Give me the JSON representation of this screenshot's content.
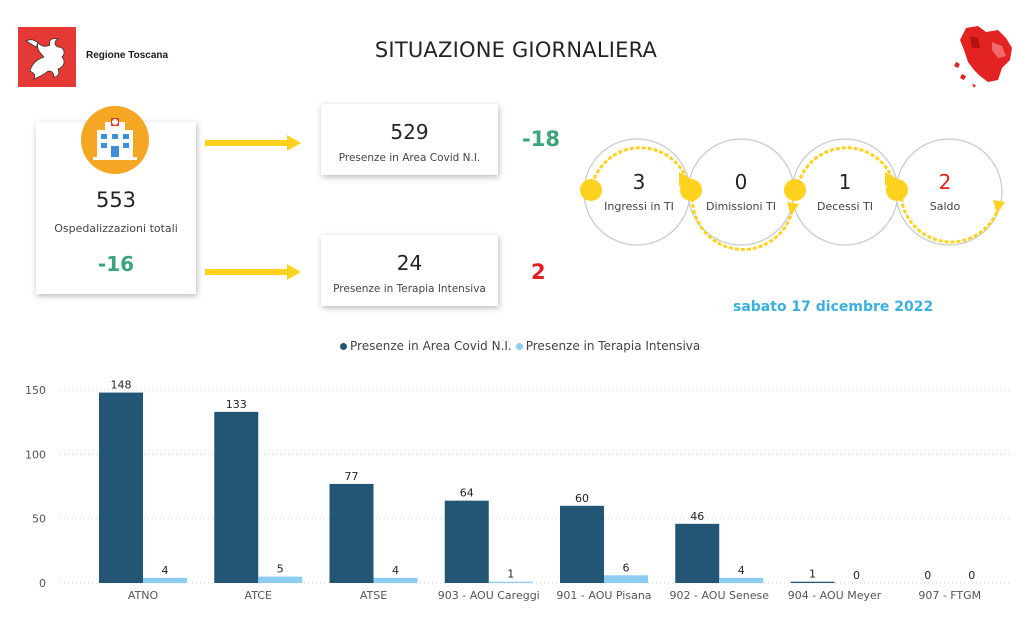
{
  "header": {
    "region_name": "Regione Toscana",
    "title": "SITUAZIONE GIORNALIERA"
  },
  "kpi": {
    "total": {
      "value": "553",
      "label": "Ospedalizzazioni totali",
      "delta": "-16"
    },
    "covid": {
      "value": "529",
      "label": "Presenze in Area Covid N.I.",
      "delta": "-18"
    },
    "ti": {
      "value": "24",
      "label": "Presenze in Terapia Intensiva",
      "delta": "2"
    }
  },
  "flow": [
    {
      "value": "3",
      "label": "Ingressi in TI"
    },
    {
      "value": "0",
      "label": "Dimissioni TI"
    },
    {
      "value": "1",
      "label": "Decessi TI"
    },
    {
      "value": "2",
      "label": "Saldo"
    }
  ],
  "date": "sabato 17 dicembre 2022",
  "colors": {
    "covid": "#235674",
    "ti": "#8ecdf2",
    "positive_delta": "#3aa57a",
    "negative_delta": "#e02020",
    "arrow": "#ffd21f",
    "date": "#3ab0e0"
  },
  "chart_data": {
    "type": "bar",
    "categories": [
      "ATNO",
      "ATCE",
      "ATSE",
      "903 - AOU Careggi",
      "901 - AOU Pisana",
      "902 - AOU Senese",
      "904 - AOU Meyer",
      "907 - FTGM"
    ],
    "series": [
      {
        "name": "Presenze in Area Covid N.I.",
        "values": [
          148,
          133,
          77,
          64,
          60,
          46,
          1,
          0
        ]
      },
      {
        "name": "Presenze in Terapia Intensiva",
        "values": [
          4,
          5,
          4,
          1,
          6,
          4,
          0,
          0
        ]
      }
    ],
    "yticks": [
      0,
      50,
      100,
      150
    ],
    "ylim": [
      0,
      150
    ],
    "grid": true,
    "legend": "top-center"
  }
}
